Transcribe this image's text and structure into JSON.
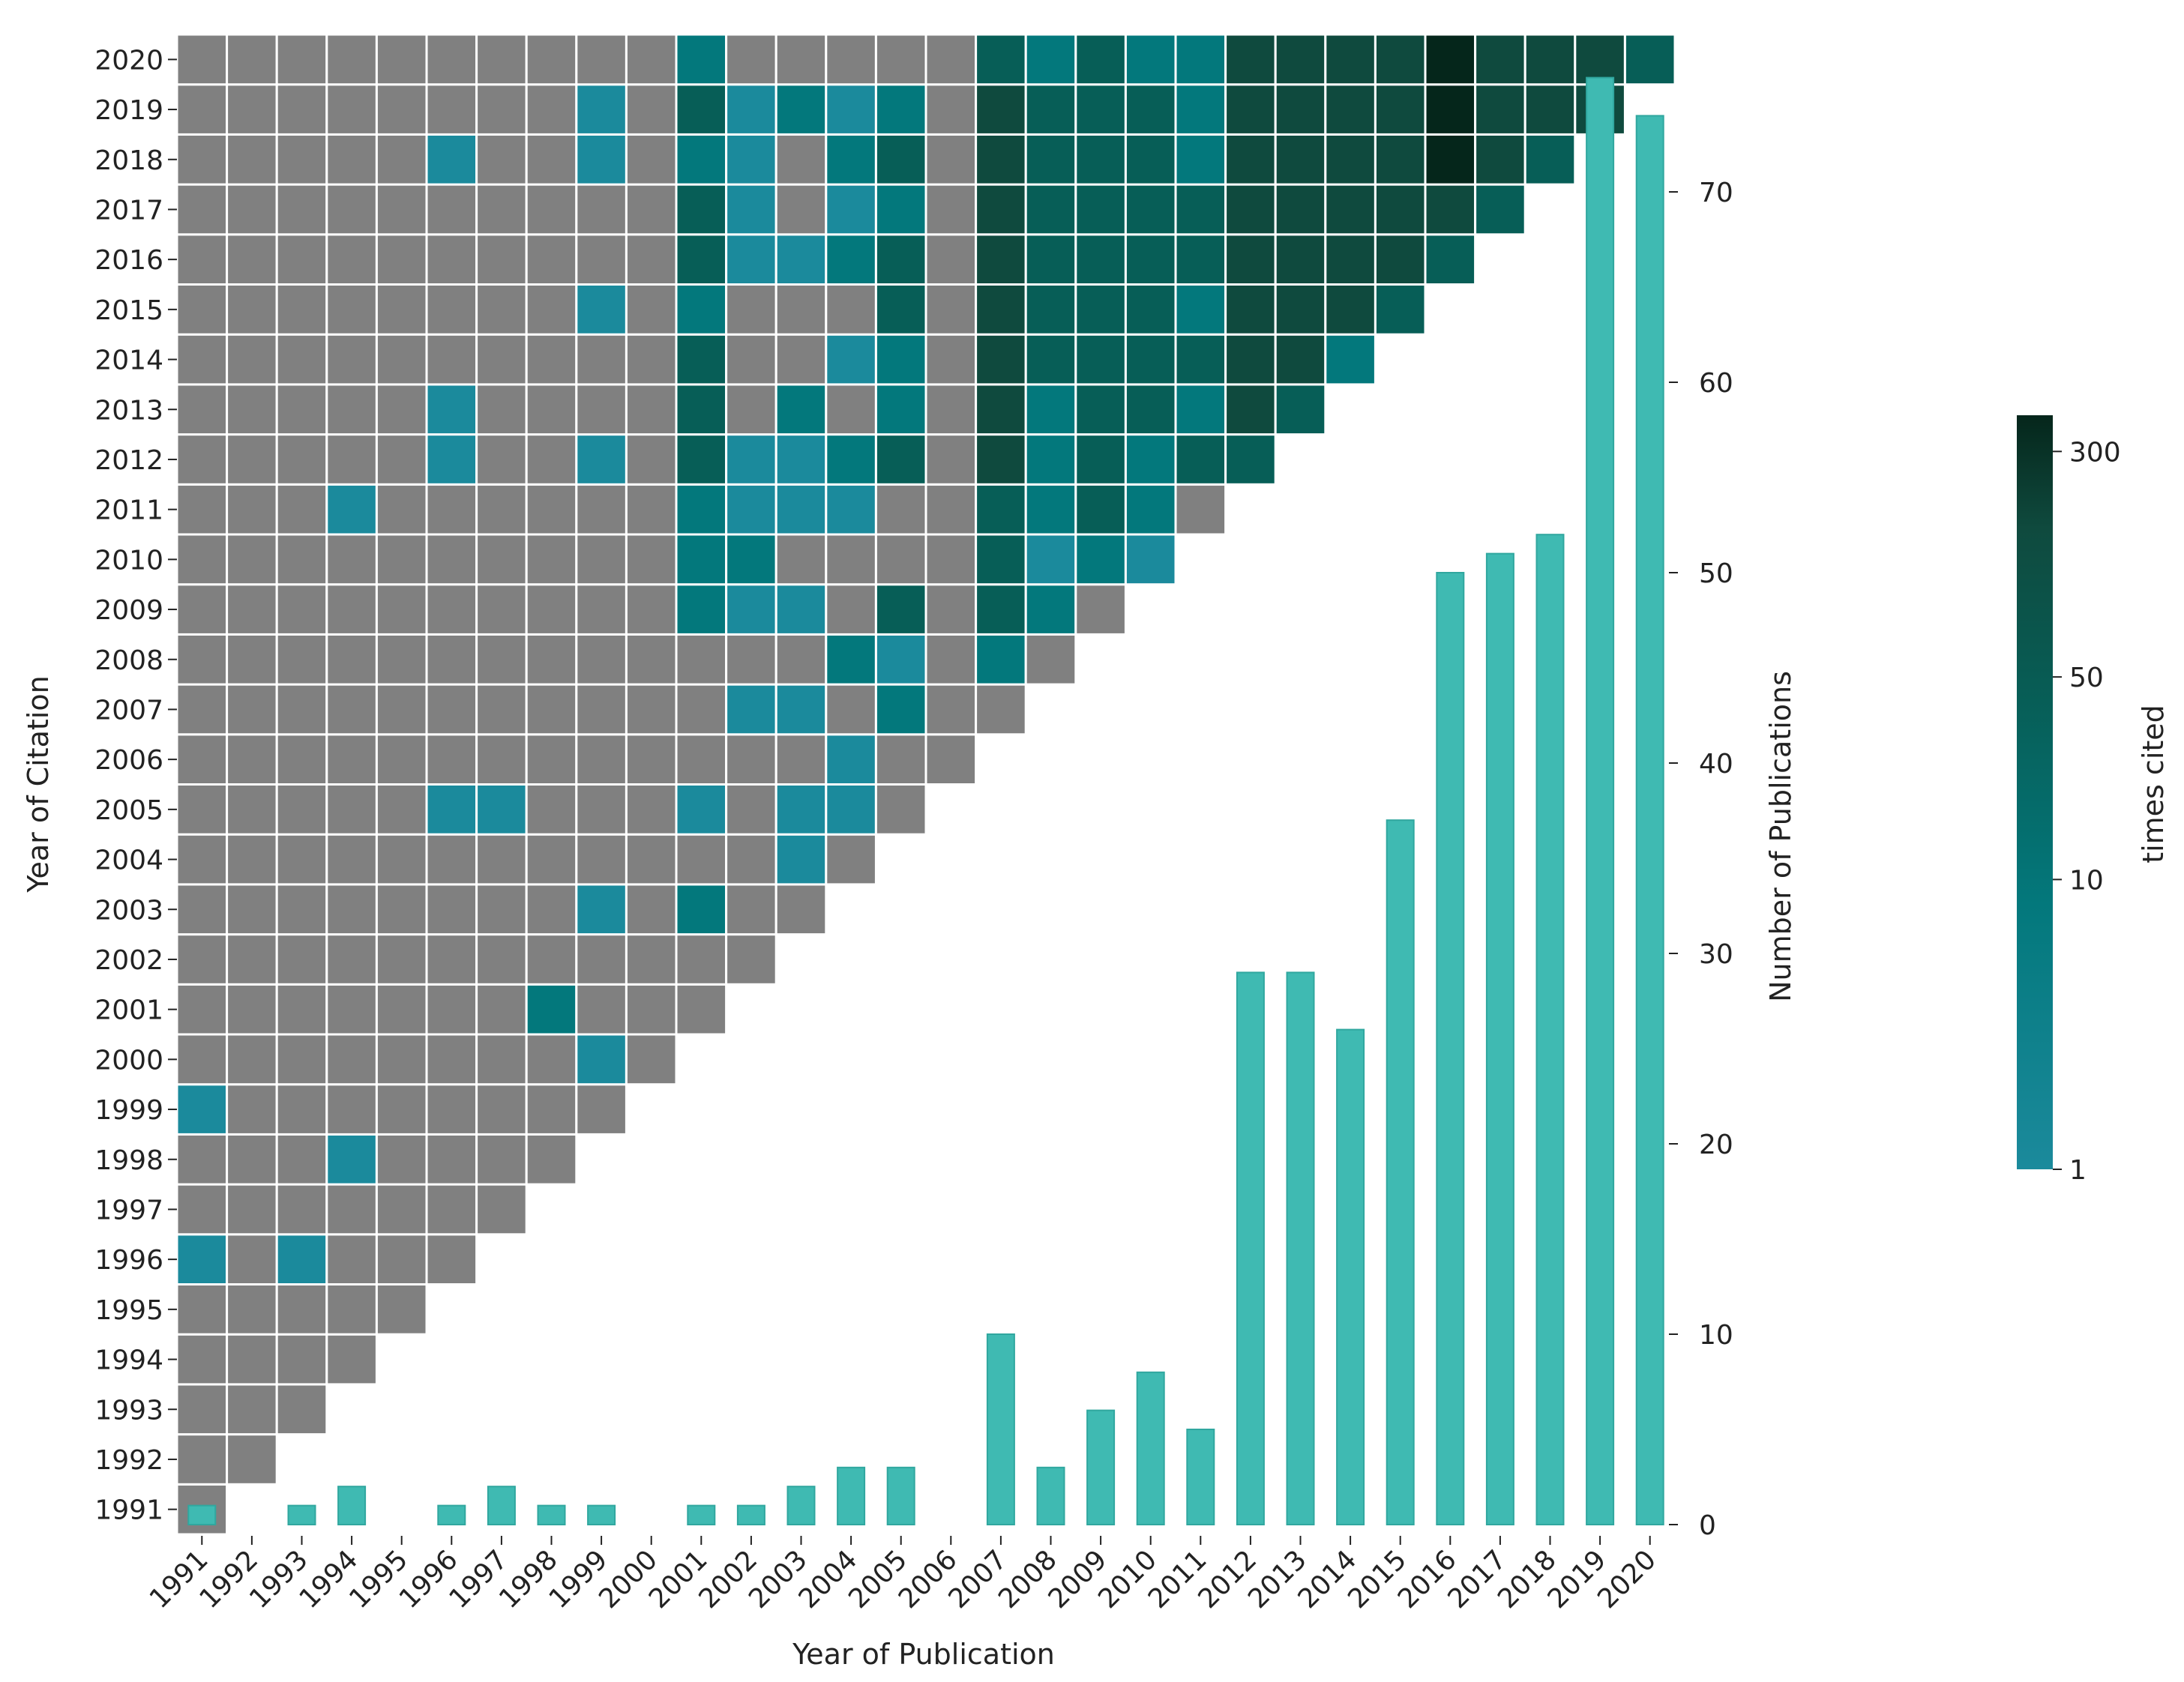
{
  "chart_data": {
    "type": "heatmap",
    "xlabel": "Year of Publication",
    "ylabel": "Year of Citation",
    "years": [
      1991,
      1992,
      1993,
      1994,
      1995,
      1996,
      1997,
      1998,
      1999,
      2000,
      2001,
      2002,
      2003,
      2004,
      2005,
      2006,
      2007,
      2008,
      2009,
      2010,
      2011,
      2012,
      2013,
      2014,
      2015,
      2016,
      2017,
      2018,
      2019,
      2020
    ],
    "colors": {
      "zero_cell": "#808080",
      "low": "#1b8a9c",
      "mid": "#03787c",
      "midhigh": "#075e57",
      "high": "#0f4a3e",
      "max": "#05261b",
      "bar": "#3fbab2",
      "bar_edge": "#30a79f",
      "grid": "#ffffff"
    },
    "heatmap_levels_note": "0 = zero citations (gray), 1..5 = increasing times cited",
    "heatmap": [
      {
        "cite_year": 1991,
        "levels": [
          0
        ]
      },
      {
        "cite_year": 1992,
        "levels": [
          0,
          0
        ]
      },
      {
        "cite_year": 1993,
        "levels": [
          0,
          0,
          0
        ]
      },
      {
        "cite_year": 1994,
        "levels": [
          0,
          0,
          0,
          0
        ]
      },
      {
        "cite_year": 1995,
        "levels": [
          0,
          0,
          0,
          0,
          0
        ]
      },
      {
        "cite_year": 1996,
        "levels": [
          1,
          0,
          1,
          0,
          0,
          0
        ]
      },
      {
        "cite_year": 1997,
        "levels": [
          0,
          0,
          0,
          0,
          0,
          0,
          0
        ]
      },
      {
        "cite_year": 1998,
        "levels": [
          0,
          0,
          0,
          1,
          0,
          0,
          0,
          0
        ]
      },
      {
        "cite_year": 1999,
        "levels": [
          1,
          0,
          0,
          0,
          0,
          0,
          0,
          0,
          0
        ]
      },
      {
        "cite_year": 2000,
        "levels": [
          0,
          0,
          0,
          0,
          0,
          0,
          0,
          0,
          1,
          0
        ]
      },
      {
        "cite_year": 2001,
        "levels": [
          0,
          0,
          0,
          0,
          0,
          0,
          0,
          2,
          0,
          0,
          0
        ]
      },
      {
        "cite_year": 2002,
        "levels": [
          0,
          0,
          0,
          0,
          0,
          0,
          0,
          0,
          0,
          0,
          0,
          0
        ]
      },
      {
        "cite_year": 2003,
        "levels": [
          0,
          0,
          0,
          0,
          0,
          0,
          0,
          0,
          1,
          0,
          2,
          0,
          0
        ]
      },
      {
        "cite_year": 2004,
        "levels": [
          0,
          0,
          0,
          0,
          0,
          0,
          0,
          0,
          0,
          0,
          0,
          0,
          1,
          0
        ]
      },
      {
        "cite_year": 2005,
        "levels": [
          0,
          0,
          0,
          0,
          0,
          1,
          1,
          0,
          0,
          0,
          1,
          0,
          1,
          1,
          0
        ]
      },
      {
        "cite_year": 2006,
        "levels": [
          0,
          0,
          0,
          0,
          0,
          0,
          0,
          0,
          0,
          0,
          0,
          0,
          0,
          1,
          0,
          0
        ]
      },
      {
        "cite_year": 2007,
        "levels": [
          0,
          0,
          0,
          0,
          0,
          0,
          0,
          0,
          0,
          0,
          0,
          1,
          1,
          0,
          2,
          0,
          0
        ]
      },
      {
        "cite_year": 2008,
        "levels": [
          0,
          0,
          0,
          0,
          0,
          0,
          0,
          0,
          0,
          0,
          0,
          0,
          0,
          2,
          1,
          0,
          2,
          0
        ]
      },
      {
        "cite_year": 2009,
        "levels": [
          0,
          0,
          0,
          0,
          0,
          0,
          0,
          0,
          0,
          0,
          2,
          1,
          1,
          0,
          3,
          0,
          3,
          2,
          0
        ]
      },
      {
        "cite_year": 2010,
        "levels": [
          0,
          0,
          0,
          0,
          0,
          0,
          0,
          0,
          0,
          0,
          2,
          2,
          0,
          0,
          0,
          0,
          3,
          1,
          2,
          1
        ]
      },
      {
        "cite_year": 2011,
        "levels": [
          0,
          0,
          0,
          1,
          0,
          0,
          0,
          0,
          0,
          0,
          2,
          1,
          1,
          1,
          0,
          0,
          3,
          2,
          3,
          2,
          0
        ]
      },
      {
        "cite_year": 2012,
        "levels": [
          0,
          0,
          0,
          0,
          0,
          1,
          0,
          0,
          1,
          0,
          3,
          1,
          1,
          2,
          3,
          0,
          4,
          2,
          3,
          2,
          3,
          3
        ]
      },
      {
        "cite_year": 2013,
        "levels": [
          0,
          0,
          0,
          0,
          0,
          1,
          0,
          0,
          0,
          0,
          3,
          0,
          2,
          0,
          2,
          0,
          4,
          2,
          3,
          3,
          2,
          4,
          3
        ]
      },
      {
        "cite_year": 2014,
        "levels": [
          0,
          0,
          0,
          0,
          0,
          0,
          0,
          0,
          0,
          0,
          3,
          0,
          0,
          1,
          2,
          0,
          4,
          3,
          3,
          3,
          3,
          4,
          4,
          2
        ]
      },
      {
        "cite_year": 2015,
        "levels": [
          0,
          0,
          0,
          0,
          0,
          0,
          0,
          0,
          1,
          0,
          2,
          0,
          0,
          0,
          3,
          0,
          4,
          3,
          3,
          3,
          2,
          4,
          4,
          4,
          3
        ]
      },
      {
        "cite_year": 2016,
        "levels": [
          0,
          0,
          0,
          0,
          0,
          0,
          0,
          0,
          0,
          0,
          3,
          1,
          1,
          2,
          3,
          0,
          4,
          3,
          3,
          3,
          3,
          4,
          4,
          4,
          4,
          3
        ]
      },
      {
        "cite_year": 2017,
        "levels": [
          0,
          0,
          0,
          0,
          0,
          0,
          0,
          0,
          0,
          0,
          3,
          1,
          0,
          1,
          2,
          0,
          4,
          3,
          3,
          3,
          3,
          4,
          4,
          4,
          4,
          4,
          3
        ]
      },
      {
        "cite_year": 2018,
        "levels": [
          0,
          0,
          0,
          0,
          0,
          1,
          0,
          0,
          1,
          0,
          2,
          1,
          0,
          2,
          3,
          0,
          4,
          3,
          3,
          3,
          2,
          4,
          4,
          4,
          4,
          5,
          4,
          3
        ]
      },
      {
        "cite_year": 2019,
        "levels": [
          0,
          0,
          0,
          0,
          0,
          0,
          0,
          0,
          1,
          0,
          3,
          1,
          2,
          1,
          2,
          0,
          4,
          3,
          3,
          3,
          2,
          4,
          4,
          4,
          4,
          5,
          4,
          4,
          4
        ]
      },
      {
        "cite_year": 2020,
        "levels": [
          0,
          0,
          0,
          0,
          0,
          0,
          0,
          0,
          0,
          0,
          2,
          0,
          0,
          0,
          0,
          0,
          3,
          2,
          3,
          2,
          2,
          4,
          4,
          4,
          4,
          5,
          4,
          4,
          4,
          3
        ]
      }
    ],
    "bars": {
      "ylabel": "Number of Publications",
      "ylim": [
        0,
        76
      ],
      "ticks": [
        0,
        10,
        20,
        30,
        40,
        50,
        60,
        70
      ],
      "values": [
        1,
        0,
        1,
        2,
        0,
        1,
        2,
        1,
        1,
        0,
        1,
        1,
        2,
        3,
        3,
        0,
        10,
        3,
        6,
        8,
        5,
        29,
        29,
        26,
        37,
        50,
        51,
        52,
        76,
        74
      ]
    },
    "colorbar": {
      "label": "times cited",
      "tick_labels": [
        "1",
        "10",
        "50",
        "300"
      ],
      "tick_values": [
        1,
        10,
        50,
        300
      ],
      "range": [
        1,
        400
      ]
    }
  }
}
